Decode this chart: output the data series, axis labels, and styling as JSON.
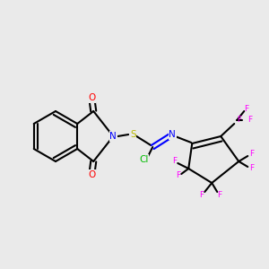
{
  "background_color": "#eaeaea",
  "bond_color": "#000000",
  "bond_lw": 1.5,
  "atom_colors": {
    "N": "#0000ff",
    "O": "#ff0000",
    "S": "#b8b800",
    "Cl": "#00bb00",
    "F": "#ff00ff",
    "C": "#000000"
  },
  "font_size": 7.5,
  "font_size_small": 6.5
}
